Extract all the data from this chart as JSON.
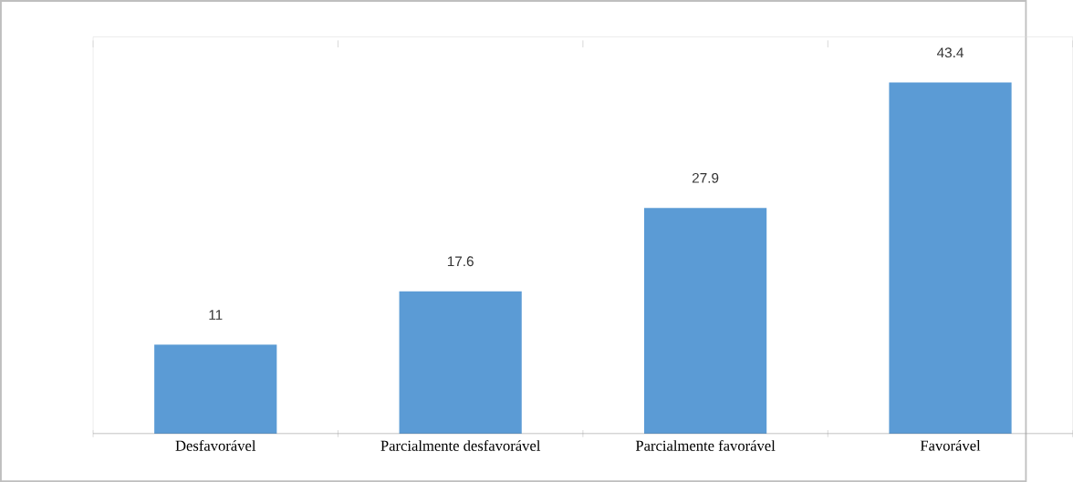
{
  "chart_data": {
    "type": "bar",
    "categories": [
      "Desfavorável",
      "Parcialmente desfavorável",
      "Parcialmente favorável",
      "Favorável"
    ],
    "values": [
      11,
      17.6,
      27.9,
      43.4
    ],
    "color": "#5b9bd5",
    "data_labels": true
  }
}
